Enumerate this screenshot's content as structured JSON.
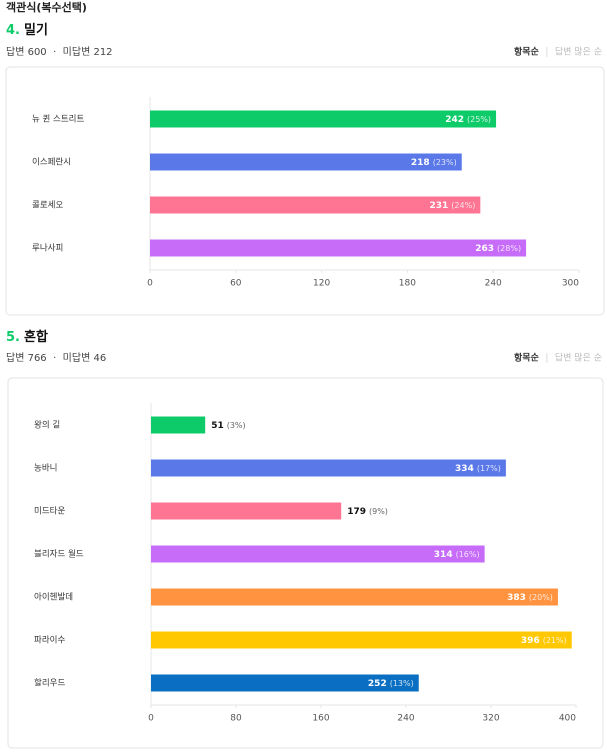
{
  "header": "객관식(복수선택)",
  "chart_data": [
    {
      "type": "bar",
      "orientation": "horizontal",
      "number": "4.",
      "title": "밀기",
      "answered": "답변 600",
      "unanswered": "미답변 212",
      "sort_options": [
        "항목순",
        "답변 많은 순"
      ],
      "categories": [
        "뉴 퀸 스트리트",
        "이스페란시",
        "콜로세오",
        "루나사피"
      ],
      "values": [
        242,
        218,
        231,
        263
      ],
      "percent_labels": [
        "(25%)",
        "(23%)",
        "(24%)",
        "(28%)"
      ],
      "colors": [
        "#0ecb6a",
        "#5a78e8",
        "#fd7592",
        "#c66cf9"
      ],
      "xlim": [
        0,
        300
      ],
      "xticks": [
        0,
        60,
        120,
        180,
        240,
        300
      ]
    },
    {
      "type": "bar",
      "orientation": "horizontal",
      "number": "5.",
      "title": "혼합",
      "answered": "답변 766",
      "unanswered": "미답변 46",
      "sort_options": [
        "항목순",
        "답변 많은 순"
      ],
      "categories": [
        "왕의 길",
        "농바니",
        "미드타운",
        "블리자드 월드",
        "아이헨발데",
        "파라이수",
        "할리우드"
      ],
      "values": [
        51,
        334,
        179,
        314,
        383,
        396,
        252
      ],
      "percent_labels": [
        "(3%)",
        "(17%)",
        "(9%)",
        "(16%)",
        "(20%)",
        "(21%)",
        "(13%)"
      ],
      "colors": [
        "#0ecb6a",
        "#5a78e8",
        "#fd7592",
        "#c66cf9",
        "#ff9340",
        "#ffc800",
        "#0a6fc2"
      ],
      "xlim": [
        0,
        400
      ],
      "xticks": [
        0,
        80,
        160,
        240,
        320,
        400
      ]
    }
  ]
}
